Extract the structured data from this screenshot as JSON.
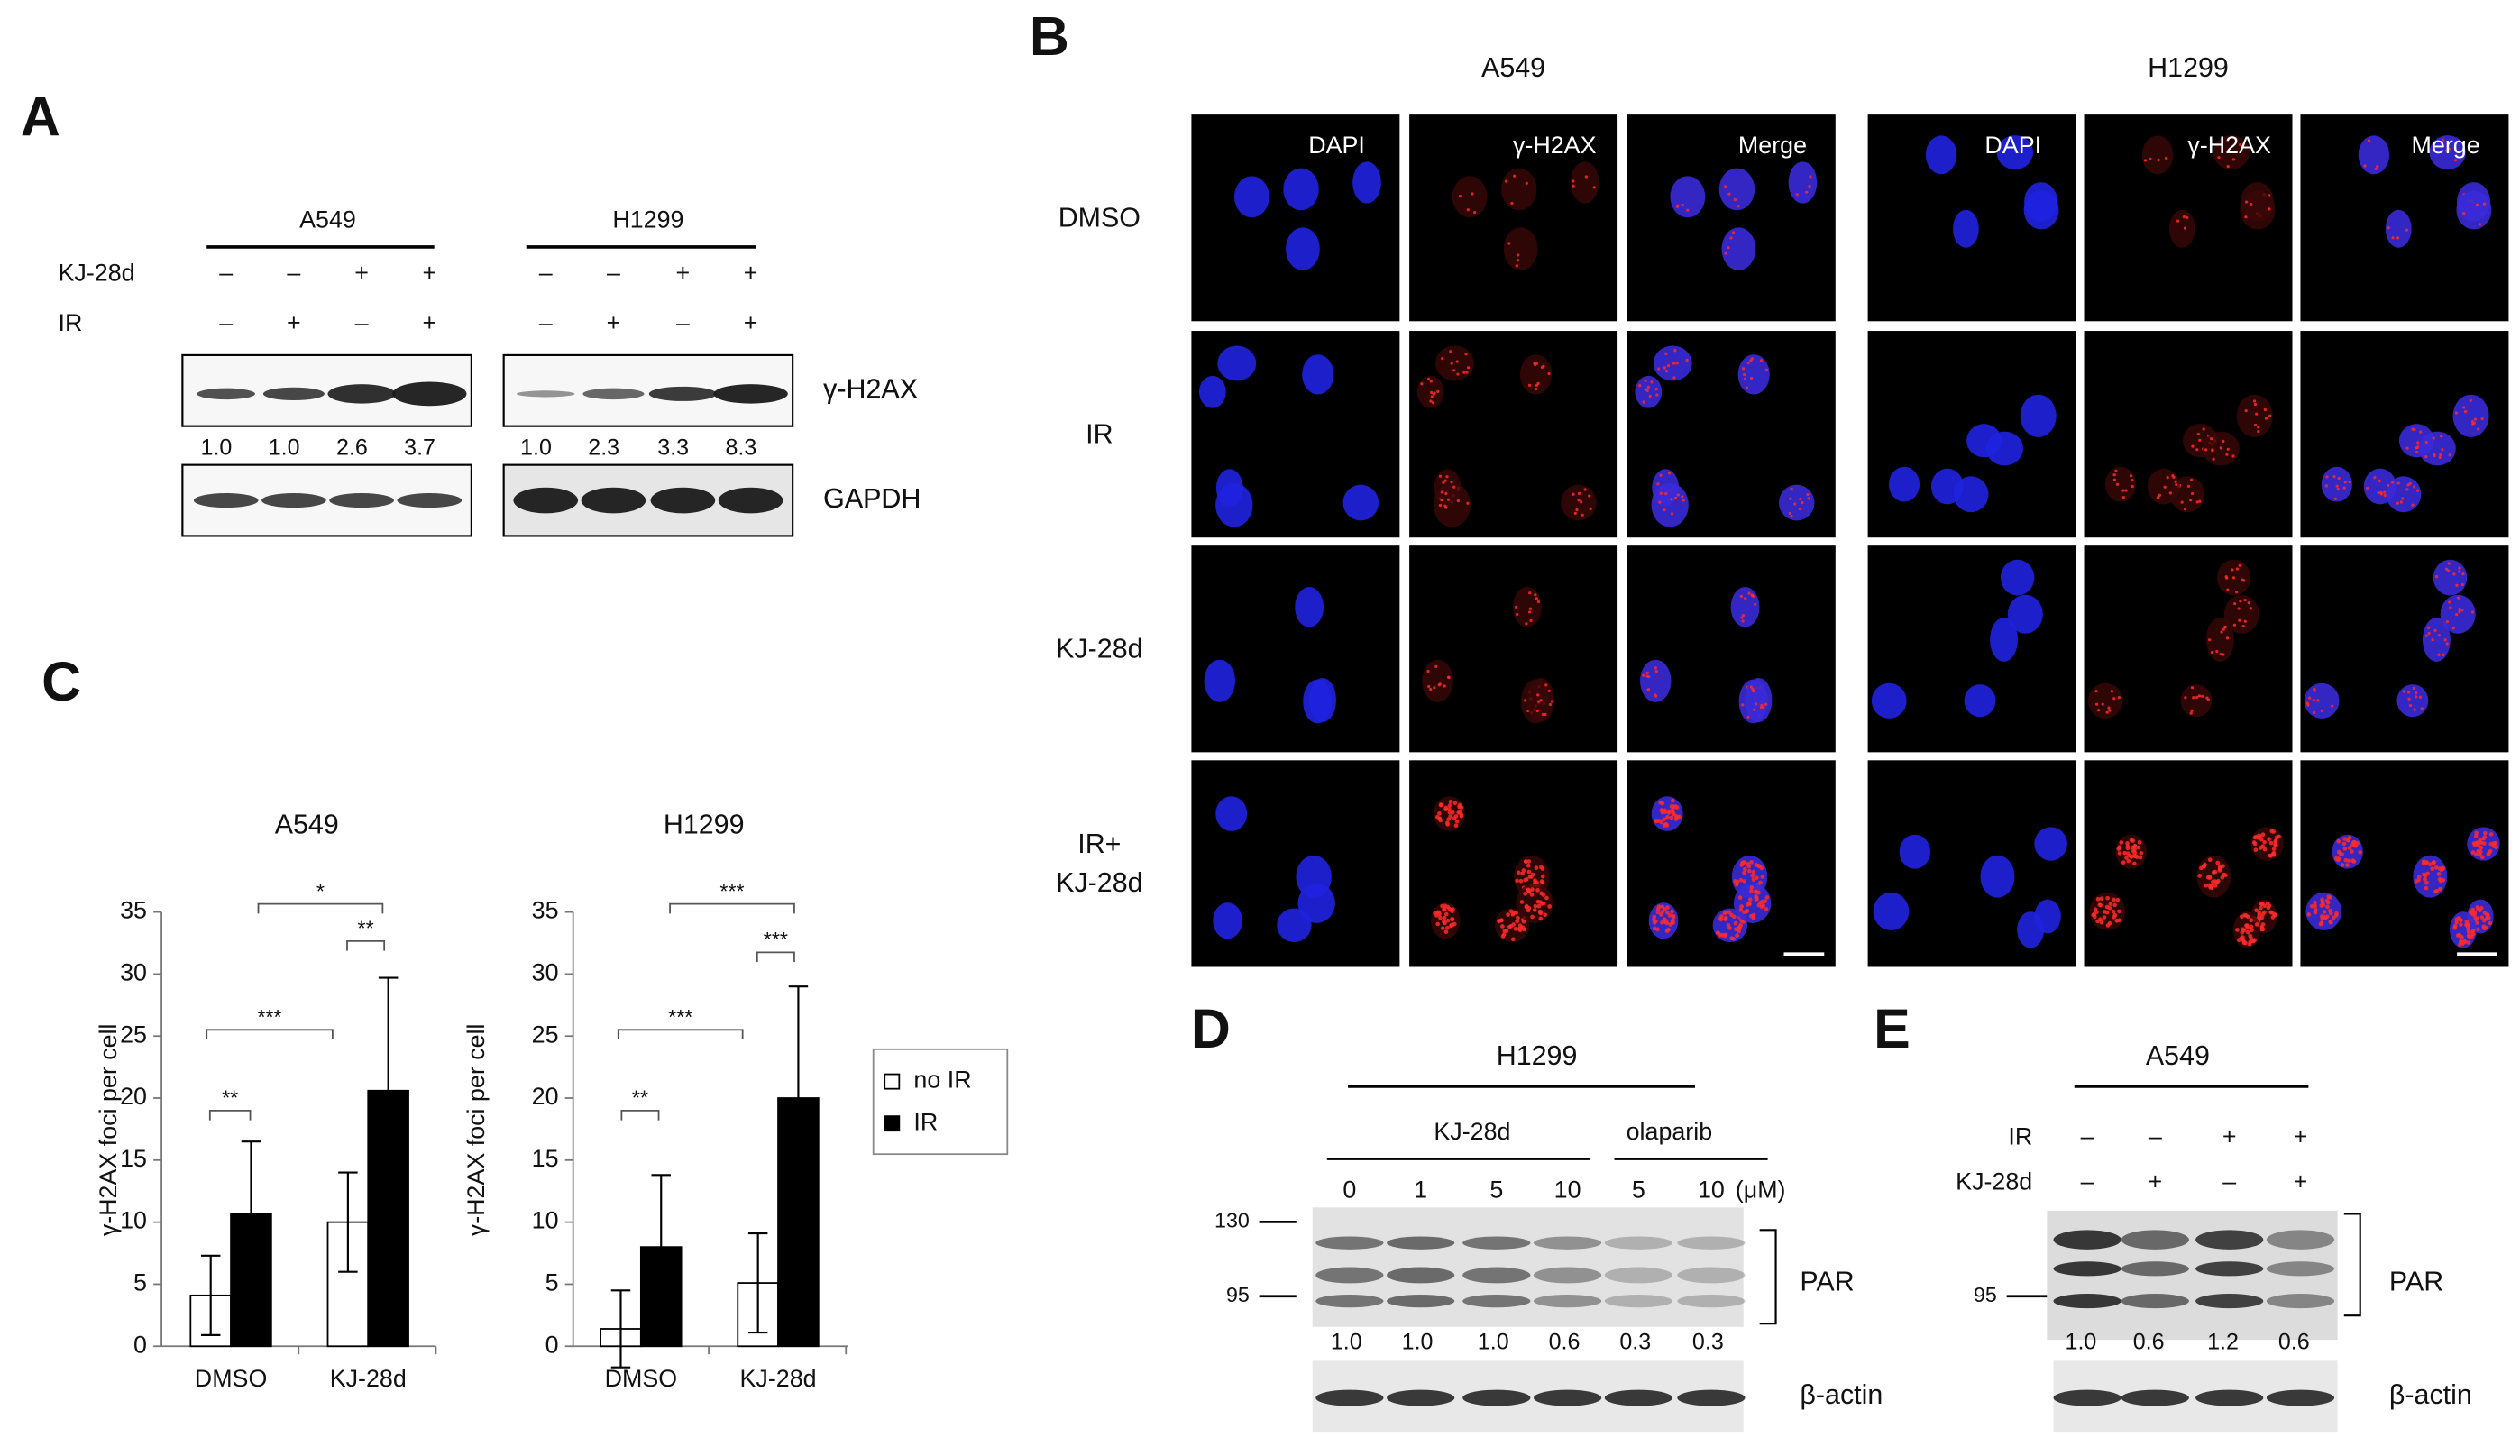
{
  "panel_a": {
    "letter": "A",
    "cell_lines": [
      {
        "name": "A549",
        "quant": [
          "1.0",
          "1.0",
          "2.6",
          "3.7"
        ]
      },
      {
        "name": "H1299",
        "quant": [
          "1.0",
          "2.3",
          "3.3",
          "8.3"
        ]
      }
    ],
    "treatments": [
      {
        "label": "KJ-28d",
        "signs": [
          "–",
          "–",
          "+",
          "+"
        ]
      },
      {
        "label": "IR",
        "signs": [
          "–",
          "+",
          "–",
          "+"
        ]
      }
    ],
    "blots": [
      "γ-H2AX",
      "GAPDH"
    ]
  },
  "panel_b": {
    "letter": "B",
    "cell_lines": [
      "A549",
      "H1299"
    ],
    "channels": [
      "DAPI",
      "γ-H2AX",
      "Merge"
    ],
    "conditions": [
      [
        "DMSO"
      ],
      [
        "IR"
      ],
      [
        "KJ-28d"
      ],
      [
        "IR+",
        "KJ-28d"
      ]
    ]
  },
  "panel_c": {
    "letter": "C"
  },
  "chart_data": [
    {
      "type": "bar",
      "title": "A549",
      "ylabel": "γ-H2AX foci per cell",
      "categories": [
        "DMSO",
        "KJ-28d"
      ],
      "series": [
        {
          "name": "no IR",
          "color": "#ffffff",
          "values": [
            4.1,
            10.0
          ],
          "errors": [
            3.2,
            4.0
          ]
        },
        {
          "name": "IR",
          "color": "#000000",
          "values": [
            10.7,
            20.6
          ],
          "errors": [
            5.8,
            9.1
          ]
        }
      ],
      "ylim": [
        0,
        35
      ],
      "yticks": [
        0,
        5,
        10,
        15,
        20,
        25,
        30,
        35
      ],
      "annotations": [
        "**",
        "***",
        "**",
        "*"
      ]
    },
    {
      "type": "bar",
      "title": "H1299",
      "ylabel": "γ-H2AX foci per cell",
      "categories": [
        "DMSO",
        "KJ-28d"
      ],
      "series": [
        {
          "color": "#ffffff",
          "values": [
            1.4,
            5.1
          ],
          "errors": [
            3.1,
            4.0
          ]
        },
        {
          "color": "#000000",
          "values": [
            8.0,
            20.0
          ],
          "errors": [
            5.8,
            9.0
          ]
        }
      ],
      "ylim": [
        0,
        35
      ],
      "yticks": [
        0,
        5,
        10,
        15,
        20,
        25,
        30,
        35
      ],
      "annotations": [
        "**",
        "***",
        "***",
        "***"
      ]
    }
  ],
  "panel_d": {
    "letter": "D",
    "cell_line": "H1299",
    "groups": [
      "KJ-28d",
      "olaparib"
    ],
    "concentrations": [
      "0",
      "1",
      "5",
      "10",
      "5",
      "10"
    ],
    "unit": "(μM)",
    "markers": [
      "130",
      "95"
    ],
    "blots": [
      "PAR",
      "β-actin"
    ],
    "quant": [
      "1.0",
      "1.0",
      "1.0",
      "0.6",
      "0.3",
      "0.3"
    ]
  },
  "panel_e": {
    "letter": "E",
    "cell_line": "A549",
    "treatments": [
      {
        "label": "IR",
        "signs": [
          "–",
          "–",
          "+",
          "+"
        ]
      },
      {
        "label": "KJ-28d",
        "signs": [
          "–",
          "+",
          "–",
          "+"
        ]
      }
    ],
    "markers": [
      "95"
    ],
    "blots": [
      "PAR",
      "β-actin"
    ],
    "quant": [
      "1.0",
      "0.6",
      "1.2",
      "0.6"
    ]
  }
}
